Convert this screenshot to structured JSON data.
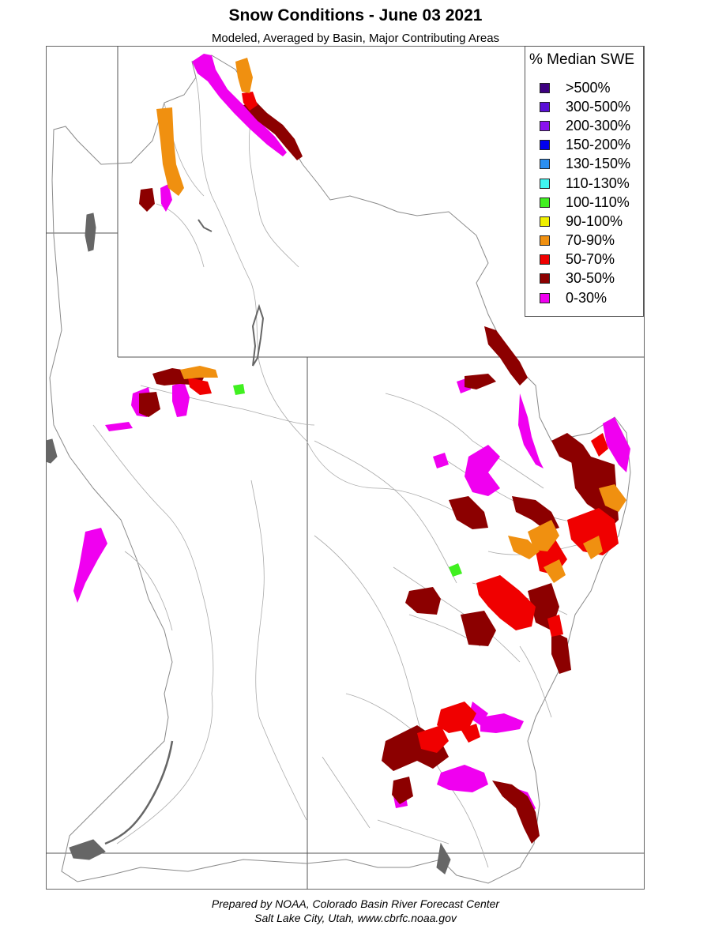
{
  "title": "Snow Conditions - June 03 2021",
  "subtitle": "Modeled, Averaged by Basin, Major Contributing Areas",
  "legend": {
    "title": "% Median SWE",
    "items": [
      {
        "label": ">500%",
        "color": "#3d0080"
      },
      {
        "label": "300-500%",
        "color": "#5a0fd6"
      },
      {
        "label": "200-300%",
        "color": "#8a12f0"
      },
      {
        "label": "150-200%",
        "color": "#0000f0"
      },
      {
        "label": "130-150%",
        "color": "#2b8ff0"
      },
      {
        "label": "110-130%",
        "color": "#40f5f0"
      },
      {
        "label": "100-110%",
        "color": "#40f020"
      },
      {
        "label": "90-100%",
        "color": "#f0f000"
      },
      {
        "label": "70-90%",
        "color": "#f09010"
      },
      {
        "label": "50-70%",
        "color": "#f00000"
      },
      {
        "label": "30-50%",
        "color": "#8c0000"
      },
      {
        "label": "0-30%",
        "color": "#f000f0"
      }
    ]
  },
  "footer": {
    "line1": "Prepared by NOAA, Colorado Basin River Forecast Center",
    "line2": "Salt Lake City, Utah, www.cbrfc.noaa.gov"
  }
}
